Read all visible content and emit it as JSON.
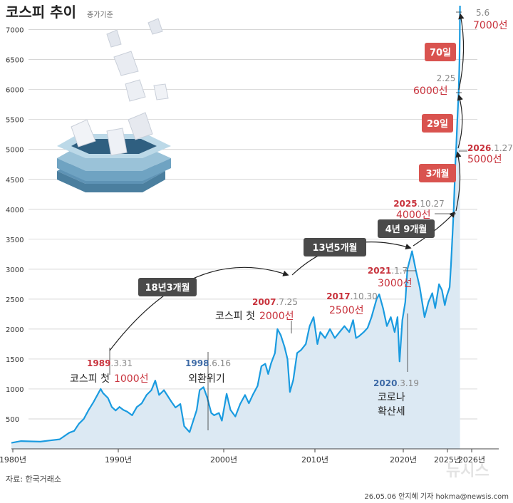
{
  "header": {
    "title": "코스피 추이",
    "subtitle": "종가기준"
  },
  "footer": {
    "source": "자료: 한국거래소",
    "credit": "26.05.06 안지혜 기자 hokma@newsis.com",
    "watermark": "뉴시스"
  },
  "colors": {
    "line": "#1a9be0",
    "area": "#dce9f3",
    "grid": "#c8c8c8",
    "accent_red": "#c8323c",
    "accent_blue": "#3d6aa6",
    "pill_dark": "#4a4a4a",
    "pill_red": "#d9534f"
  },
  "chart_data": {
    "type": "line",
    "title": "코스피 추이",
    "subtitle": "종가기준",
    "xlabel": "",
    "ylabel": "",
    "x_ticks": [
      "1980년",
      "1990년",
      "2000년",
      "2010년",
      "2020년",
      "2025년",
      "2026년"
    ],
    "y_ticks": [
      500,
      1000,
      1500,
      2000,
      2500,
      3000,
      3500,
      4000,
      4500,
      5000,
      5500,
      6000,
      6500,
      7000
    ],
    "ylim": [
      0,
      7400
    ],
    "xlim": [
      1980,
      2026.5
    ],
    "grid": true,
    "series": [
      {
        "values": [
          [
            1980.0,
            100
          ],
          [
            1981.0,
            130
          ],
          [
            1982.0,
            125
          ],
          [
            1983.0,
            120
          ],
          [
            1984.0,
            140
          ],
          [
            1985.0,
            160
          ],
          [
            1986.0,
            270
          ],
          [
            1986.5,
            300
          ],
          [
            1987.0,
            420
          ],
          [
            1987.5,
            500
          ],
          [
            1988.0,
            650
          ],
          [
            1988.5,
            780
          ],
          [
            1989.25,
            1000
          ],
          [
            1989.5,
            930
          ],
          [
            1990.0,
            850
          ],
          [
            1990.4,
            700
          ],
          [
            1990.8,
            640
          ],
          [
            1991.2,
            700
          ],
          [
            1991.6,
            650
          ],
          [
            1992.0,
            620
          ],
          [
            1992.5,
            560
          ],
          [
            1993.0,
            700
          ],
          [
            1993.5,
            760
          ],
          [
            1994.0,
            900
          ],
          [
            1994.5,
            980
          ],
          [
            1994.9,
            1140
          ],
          [
            1995.3,
            900
          ],
          [
            1995.8,
            980
          ],
          [
            1996.2,
            880
          ],
          [
            1996.6,
            780
          ],
          [
            1997.0,
            690
          ],
          [
            1997.5,
            750
          ],
          [
            1997.9,
            380
          ],
          [
            1998.46,
            280
          ],
          [
            1998.8,
            450
          ],
          [
            1999.2,
            650
          ],
          [
            1999.5,
            980
          ],
          [
            1999.9,
            1030
          ],
          [
            2000.3,
            850
          ],
          [
            2000.7,
            600
          ],
          [
            2001.0,
            560
          ],
          [
            2001.5,
            600
          ],
          [
            2001.8,
            470
          ],
          [
            2002.3,
            920
          ],
          [
            2002.7,
            650
          ],
          [
            2003.2,
            540
          ],
          [
            2003.7,
            750
          ],
          [
            2004.2,
            900
          ],
          [
            2004.6,
            760
          ],
          [
            2005.0,
            900
          ],
          [
            2005.5,
            1050
          ],
          [
            2005.9,
            1380
          ],
          [
            2006.3,
            1420
          ],
          [
            2006.6,
            1250
          ],
          [
            2006.9,
            1430
          ],
          [
            2007.3,
            1600
          ],
          [
            2007.56,
            2000
          ],
          [
            2007.9,
            1900
          ],
          [
            2008.3,
            1700
          ],
          [
            2008.6,
            1500
          ],
          [
            2008.85,
            950
          ],
          [
            2009.2,
            1150
          ],
          [
            2009.6,
            1600
          ],
          [
            2010.0,
            1650
          ],
          [
            2010.5,
            1750
          ],
          [
            2010.9,
            2050
          ],
          [
            2011.3,
            2200
          ],
          [
            2011.7,
            1750
          ],
          [
            2012.0,
            1950
          ],
          [
            2012.5,
            1850
          ],
          [
            2013.0,
            2000
          ],
          [
            2013.5,
            1850
          ],
          [
            2014.0,
            1950
          ],
          [
            2014.5,
            2050
          ],
          [
            2015.0,
            1950
          ],
          [
            2015.4,
            2150
          ],
          [
            2015.7,
            1850
          ],
          [
            2016.0,
            1880
          ],
          [
            2016.5,
            1950
          ],
          [
            2016.9,
            2020
          ],
          [
            2017.3,
            2200
          ],
          [
            2017.83,
            2500
          ],
          [
            2018.1,
            2580
          ],
          [
            2018.5,
            2350
          ],
          [
            2018.9,
            2050
          ],
          [
            2019.3,
            2200
          ],
          [
            2019.7,
            1950
          ],
          [
            2020.0,
            2200
          ],
          [
            2020.21,
            1460
          ],
          [
            2020.5,
            2150
          ],
          [
            2020.8,
            2450
          ],
          [
            2021.02,
            3000
          ],
          [
            2021.5,
            3300
          ],
          [
            2021.9,
            2980
          ],
          [
            2022.3,
            2700
          ],
          [
            2022.8,
            2200
          ],
          [
            2023.2,
            2450
          ],
          [
            2023.6,
            2600
          ],
          [
            2023.9,
            2350
          ],
          [
            2024.3,
            2750
          ],
          [
            2024.6,
            2650
          ],
          [
            2024.9,
            2400
          ],
          [
            2025.1,
            2550
          ],
          [
            2025.4,
            2700
          ],
          [
            2025.55,
            3100
          ],
          [
            2025.82,
            4000
          ],
          [
            2026.0,
            4800
          ],
          [
            2026.07,
            5000
          ],
          [
            2026.2,
            5500
          ],
          [
            2026.3,
            5850
          ],
          [
            2026.34,
            6000
          ],
          [
            2026.38,
            6250
          ],
          [
            2026.42,
            6500
          ],
          [
            2026.45,
            6900
          ],
          [
            2026.47,
            7400
          ]
        ]
      }
    ]
  },
  "annotations": {
    "a1989": {
      "date_year": "1989",
      "date_rest": ".3.31",
      "label": "코스피 첫",
      "value": "1000선"
    },
    "a1998": {
      "date_year": "1998",
      "date_rest": ".6.16",
      "label": "외환위기"
    },
    "a2007": {
      "date_year": "2007",
      "date_rest": ".7.25",
      "label": "코스피 첫",
      "value": "2000선"
    },
    "a2017": {
      "date_year": "2017",
      "date_rest": ".10.30",
      "value": "2500선"
    },
    "a2020": {
      "date_year": "2020",
      "date_rest": ".3.19",
      "line1": "코로나",
      "line2": "확산세"
    },
    "a2021": {
      "date_year": "2021",
      "date_rest": ".1.7",
      "value": "3000선"
    },
    "a2025": {
      "date_year": "2025",
      "date_rest": ".10.27",
      "value": "4000선"
    },
    "a2026": {
      "date_year": "2026",
      "date_rest": ".1.27",
      "value": "5000선"
    },
    "a6000": {
      "date": "2.25",
      "value": "6000선"
    },
    "a7000": {
      "date": "5.6",
      "value": "7000선"
    }
  },
  "pills": {
    "p1": "18년3개월",
    "p2": "13년5개월",
    "p3": "4년 9개월",
    "p4": "3개월",
    "p5": "29일",
    "p6": "70일"
  }
}
